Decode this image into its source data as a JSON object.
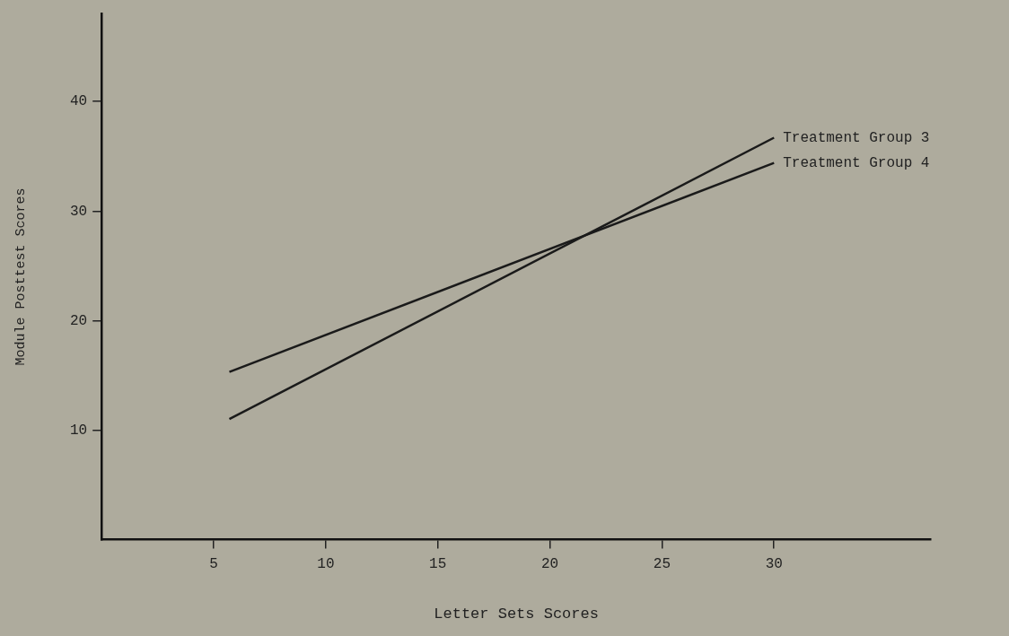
{
  "chart_data": {
    "type": "line",
    "xlabel": "Letter Sets Scores",
    "ylabel": "Module Posttest Scores",
    "xlim": [
      0,
      37
    ],
    "xticks": [
      5,
      10,
      15,
      20,
      25,
      30
    ],
    "ylim": [
      0,
      48
    ],
    "yticks": [
      10,
      20,
      30,
      40
    ],
    "x": [
      5.7,
      30
    ],
    "grid": false,
    "legend": false,
    "marker": "none",
    "line_style": "solid",
    "series": [
      {
        "name": "Treatment Group 3",
        "color": "#1a1a1a",
        "values": [
          11,
          36.7
        ]
      },
      {
        "name": "Treatment Group 4",
        "color": "#1a1a1a",
        "values": [
          15.3,
          34.4
        ]
      }
    ]
  }
}
